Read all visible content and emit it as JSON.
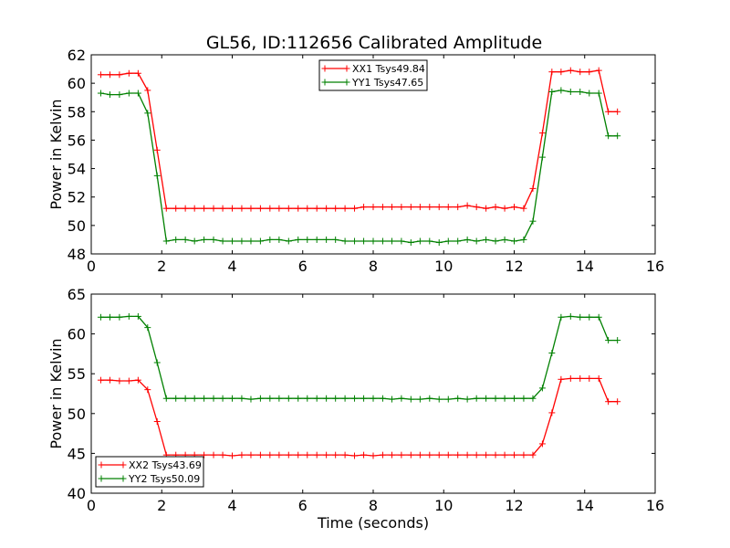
{
  "title": "GL56, ID:112656 Calibrated Amplitude",
  "chart_data": [
    {
      "type": "line",
      "ylabel": "Power in Kelvin",
      "xlabel": "",
      "xlim": [
        0,
        16
      ],
      "ylim": [
        48,
        62
      ],
      "xticks": [
        0,
        2,
        4,
        6,
        8,
        10,
        12,
        14,
        16
      ],
      "yticks": [
        48,
        50,
        52,
        54,
        56,
        58,
        60,
        62
      ],
      "legend_position": "top-center",
      "grid": false,
      "series": [
        {
          "name": "XX1 Tsys49.84",
          "color": "#ff0000",
          "x": [
            0.27,
            0.53,
            0.8,
            1.07,
            1.33,
            1.6,
            1.87,
            2.13,
            2.4,
            2.67,
            2.93,
            3.2,
            3.47,
            3.73,
            4.0,
            4.27,
            4.53,
            4.8,
            5.07,
            5.33,
            5.6,
            5.87,
            6.13,
            6.4,
            6.67,
            6.93,
            7.2,
            7.47,
            7.73,
            8.0,
            8.27,
            8.53,
            8.8,
            9.07,
            9.33,
            9.6,
            9.87,
            10.13,
            10.4,
            10.67,
            10.93,
            11.2,
            11.47,
            11.73,
            12.0,
            12.27,
            12.53,
            12.8,
            13.07,
            13.33,
            13.6,
            13.87,
            14.13,
            14.4,
            14.67,
            14.93
          ],
          "y": [
            60.6,
            60.6,
            60.6,
            60.7,
            60.7,
            59.5,
            55.3,
            51.2,
            51.2,
            51.2,
            51.2,
            51.2,
            51.2,
            51.2,
            51.2,
            51.2,
            51.2,
            51.2,
            51.2,
            51.2,
            51.2,
            51.2,
            51.2,
            51.2,
            51.2,
            51.2,
            51.2,
            51.2,
            51.3,
            51.3,
            51.3,
            51.3,
            51.3,
            51.3,
            51.3,
            51.3,
            51.3,
            51.3,
            51.3,
            51.4,
            51.3,
            51.2,
            51.3,
            51.2,
            51.3,
            51.2,
            52.6,
            56.5,
            60.8,
            60.8,
            60.9,
            60.8,
            60.8,
            60.9,
            58.0,
            58.0
          ]
        },
        {
          "name": "YY1 Tsys47.65",
          "color": "#008000",
          "x": [
            0.27,
            0.53,
            0.8,
            1.07,
            1.33,
            1.6,
            1.87,
            2.13,
            2.4,
            2.67,
            2.93,
            3.2,
            3.47,
            3.73,
            4.0,
            4.27,
            4.53,
            4.8,
            5.07,
            5.33,
            5.6,
            5.87,
            6.13,
            6.4,
            6.67,
            6.93,
            7.2,
            7.47,
            7.73,
            8.0,
            8.27,
            8.53,
            8.8,
            9.07,
            9.33,
            9.6,
            9.87,
            10.13,
            10.4,
            10.67,
            10.93,
            11.2,
            11.47,
            11.73,
            12.0,
            12.27,
            12.53,
            12.8,
            13.07,
            13.33,
            13.6,
            13.87,
            14.13,
            14.4,
            14.67,
            14.93
          ],
          "y": [
            59.3,
            59.2,
            59.2,
            59.3,
            59.3,
            57.9,
            53.5,
            48.9,
            49.0,
            49.0,
            48.9,
            49.0,
            49.0,
            48.9,
            48.9,
            48.9,
            48.9,
            48.9,
            49.0,
            49.0,
            48.9,
            49.0,
            49.0,
            49.0,
            49.0,
            49.0,
            48.9,
            48.9,
            48.9,
            48.9,
            48.9,
            48.9,
            48.9,
            48.8,
            48.9,
            48.9,
            48.8,
            48.9,
            48.9,
            49.0,
            48.9,
            49.0,
            48.9,
            49.0,
            48.9,
            49.0,
            50.3,
            54.8,
            59.4,
            59.5,
            59.4,
            59.4,
            59.3,
            59.3,
            56.3,
            56.3
          ]
        }
      ]
    },
    {
      "type": "line",
      "ylabel": "Power in Kelvin",
      "xlabel": "Time (seconds)",
      "xlim": [
        0,
        16
      ],
      "ylim": [
        40,
        65
      ],
      "xticks": [
        0,
        2,
        4,
        6,
        8,
        10,
        12,
        14,
        16
      ],
      "yticks": [
        40,
        45,
        50,
        55,
        60,
        65
      ],
      "legend_position": "lower-left",
      "grid": false,
      "series": [
        {
          "name": "XX2 Tsys43.69",
          "color": "#ff0000",
          "x": [
            0.27,
            0.53,
            0.8,
            1.07,
            1.33,
            1.6,
            1.87,
            2.13,
            2.4,
            2.67,
            2.93,
            3.2,
            3.47,
            3.73,
            4.0,
            4.27,
            4.53,
            4.8,
            5.07,
            5.33,
            5.6,
            5.87,
            6.13,
            6.4,
            6.67,
            6.93,
            7.2,
            7.47,
            7.73,
            8.0,
            8.27,
            8.53,
            8.8,
            9.07,
            9.33,
            9.6,
            9.87,
            10.13,
            10.4,
            10.67,
            10.93,
            11.2,
            11.47,
            11.73,
            12.0,
            12.27,
            12.53,
            12.8,
            13.07,
            13.33,
            13.6,
            13.87,
            14.13,
            14.4,
            14.67,
            14.93
          ],
          "y": [
            54.2,
            54.2,
            54.1,
            54.1,
            54.2,
            53.0,
            49.0,
            44.8,
            44.8,
            44.8,
            44.8,
            44.8,
            44.8,
            44.8,
            44.7,
            44.8,
            44.8,
            44.8,
            44.8,
            44.8,
            44.8,
            44.8,
            44.8,
            44.8,
            44.8,
            44.8,
            44.8,
            44.7,
            44.8,
            44.7,
            44.8,
            44.8,
            44.8,
            44.8,
            44.8,
            44.8,
            44.8,
            44.8,
            44.8,
            44.8,
            44.8,
            44.8,
            44.8,
            44.8,
            44.8,
            44.8,
            44.8,
            46.2,
            50.1,
            54.3,
            54.4,
            54.4,
            54.4,
            54.4,
            51.5,
            51.5
          ]
        },
        {
          "name": "YY2 Tsys50.09",
          "color": "#008000",
          "x": [
            0.27,
            0.53,
            0.8,
            1.07,
            1.33,
            1.6,
            1.87,
            2.13,
            2.4,
            2.67,
            2.93,
            3.2,
            3.47,
            3.73,
            4.0,
            4.27,
            4.53,
            4.8,
            5.07,
            5.33,
            5.6,
            5.87,
            6.13,
            6.4,
            6.67,
            6.93,
            7.2,
            7.47,
            7.73,
            8.0,
            8.27,
            8.53,
            8.8,
            9.07,
            9.33,
            9.6,
            9.87,
            10.13,
            10.4,
            10.67,
            10.93,
            11.2,
            11.47,
            11.73,
            12.0,
            12.27,
            12.53,
            12.8,
            13.07,
            13.33,
            13.6,
            13.87,
            14.13,
            14.4,
            14.67,
            14.93
          ],
          "y": [
            62.1,
            62.1,
            62.1,
            62.2,
            62.2,
            60.8,
            56.4,
            51.9,
            51.9,
            51.9,
            51.9,
            51.9,
            51.9,
            51.9,
            51.9,
            51.9,
            51.8,
            51.9,
            51.9,
            51.9,
            51.9,
            51.9,
            51.9,
            51.9,
            51.9,
            51.9,
            51.9,
            51.9,
            51.9,
            51.9,
            51.9,
            51.8,
            51.9,
            51.8,
            51.8,
            51.9,
            51.8,
            51.8,
            51.9,
            51.8,
            51.9,
            51.9,
            51.9,
            51.9,
            51.9,
            51.9,
            51.9,
            53.2,
            57.6,
            62.1,
            62.2,
            62.1,
            62.1,
            62.1,
            59.2,
            59.2
          ]
        }
      ]
    }
  ]
}
